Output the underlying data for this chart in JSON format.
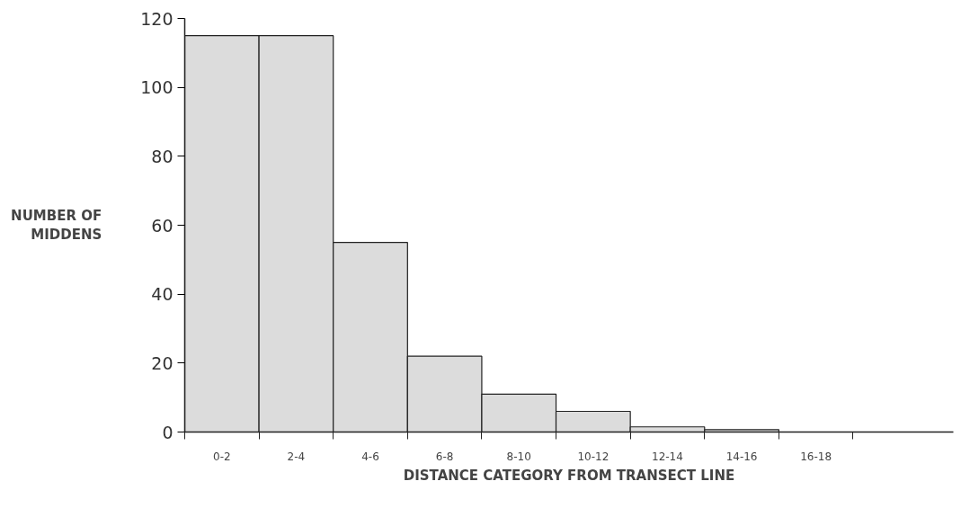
{
  "chart_data": {
    "type": "bar",
    "xlabel": "DISTANCE CATEGORY FROM TRANSECT LINE",
    "ylabel": "NUMBER OF MIDDENS",
    "categories": [
      "0-2",
      "2-4",
      "4-6",
      "6-8",
      "8-10",
      "10-12",
      "12-14",
      "14-16",
      "16-18"
    ],
    "values": [
      115,
      115,
      55,
      22,
      11,
      6,
      1.5,
      0.7,
      null
    ],
    "color": "#dcdcdc",
    "ylim": [
      0,
      120
    ],
    "yticks": [
      0,
      20,
      40,
      60,
      80,
      100,
      120
    ],
    "grid": false
  }
}
